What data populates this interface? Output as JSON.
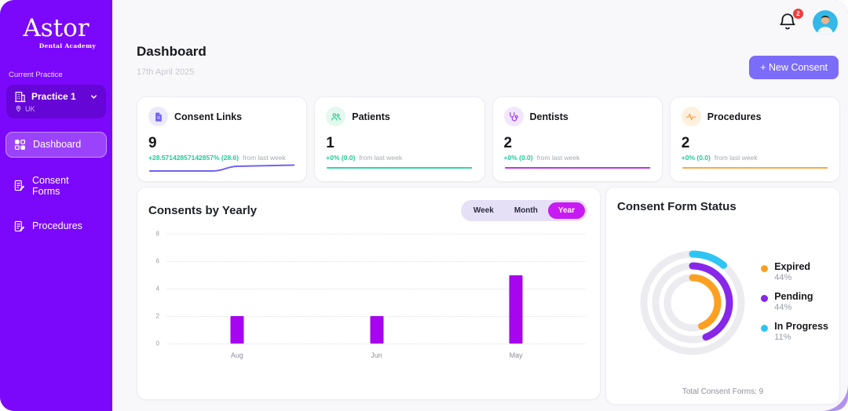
{
  "app": {
    "name": "Astor",
    "tagline": "Dental Academy"
  },
  "sidebar": {
    "section_label": "Current Practice",
    "practice": {
      "name": "Practice 1",
      "location": "UK"
    },
    "items": [
      {
        "label": "Dashboard",
        "icon": "dashboard-icon",
        "active": true
      },
      {
        "label": "Consent Forms",
        "icon": "consent-forms-icon",
        "active": false
      },
      {
        "label": "Procedures",
        "icon": "procedures-icon",
        "active": false
      }
    ]
  },
  "header": {
    "title": "Dashboard",
    "date": "17th April 2025",
    "notification_count": "2",
    "new_consent_label": "+ New Consent"
  },
  "stats": [
    {
      "title": "Consent Links",
      "value": "9",
      "delta": "+28.57142857142857% (28.6)",
      "note": "from last week",
      "icon": "document-icon",
      "accent": "#6f63f2",
      "icon_bg": "#ece9fd",
      "spark_color": "#6f63f2",
      "spark": "rise"
    },
    {
      "title": "Patients",
      "value": "1",
      "delta": "+0% (0.0)",
      "note": "from last week",
      "icon": "patients-icon",
      "accent": "#2bc48f",
      "icon_bg": "#e4f8ef",
      "spark_color": "#2fd6a4",
      "spark": "flat"
    },
    {
      "title": "Dentists",
      "value": "2",
      "delta": "+0% (0.0)",
      "note": "from last week",
      "icon": "stethoscope-icon",
      "accent": "#9b2ff2",
      "icon_bg": "#f2e6fd",
      "spark_color": "#bb33f5",
      "spark": "flat"
    },
    {
      "title": "Procedures",
      "value": "2",
      "delta": "+0% (0.0)",
      "note": "from last week",
      "icon": "pulse-icon",
      "accent": "#f8a23c",
      "icon_bg": "#fdf0df",
      "spark_color": "#f9aa42",
      "spark": "flat"
    }
  ],
  "chart_data": [
    {
      "type": "bar",
      "title": "Consents by Yearly",
      "toggle": {
        "options": [
          "Week",
          "Month",
          "Year"
        ],
        "selected": "Year",
        "selected_color": "#c81af3"
      },
      "categories": [
        "Aug",
        "Jun",
        "May"
      ],
      "values": [
        2,
        2,
        5
      ],
      "yticks": [
        0,
        2,
        4,
        6,
        8
      ],
      "ylim": [
        0,
        8
      ],
      "bar_color": "#a704f0",
      "grid": "dotted-horizontal"
    },
    {
      "type": "radial",
      "title": "Consent Form Status",
      "segments": [
        {
          "label": "Expired",
          "pct": 44,
          "color": "#fda021",
          "ring": "inner"
        },
        {
          "label": "Pending",
          "pct": 44,
          "color": "#8727e8",
          "ring": "middle"
        },
        {
          "label": "In Progress",
          "pct": 11,
          "color": "#2ec5f5",
          "ring": "outer"
        }
      ],
      "track_color": "#ececf0",
      "footer": "Total Consent Forms: 9"
    }
  ]
}
